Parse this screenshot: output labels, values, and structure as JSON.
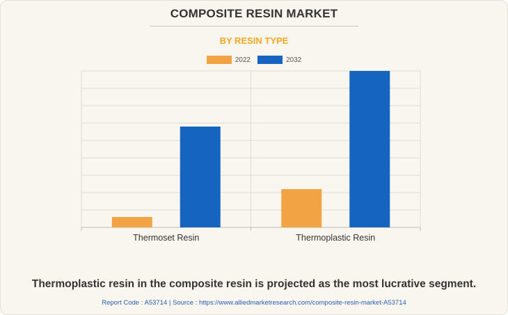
{
  "header": {
    "title": "COMPOSITE RESIN MARKET",
    "subtitle": "BY RESIN TYPE"
  },
  "colors": {
    "subtitle": "#f5a623",
    "series_2022": "#f2a444",
    "series_2032": "#1565c0"
  },
  "chart_data": {
    "type": "bar",
    "categories": [
      "Thermoset Resin",
      "Thermoplastic Resin"
    ],
    "series": [
      {
        "name": "2022",
        "values": [
          6,
          22
        ],
        "color": "#f2a444"
      },
      {
        "name": "2032",
        "values": [
          58,
          90
        ],
        "color": "#1565c0"
      }
    ],
    "ylim": [
      0,
      90
    ],
    "grid": true,
    "legend_position": "top-center",
    "y_tick_labels_shown": false
  },
  "footer": {
    "headline": "Thermoplastic resin in the composite resin is projected as the most lucrative segment.",
    "source": "Report Code : A53714  |  Source : https://www.alliedmarketresearch.com/composite-resin-market-A53714"
  }
}
